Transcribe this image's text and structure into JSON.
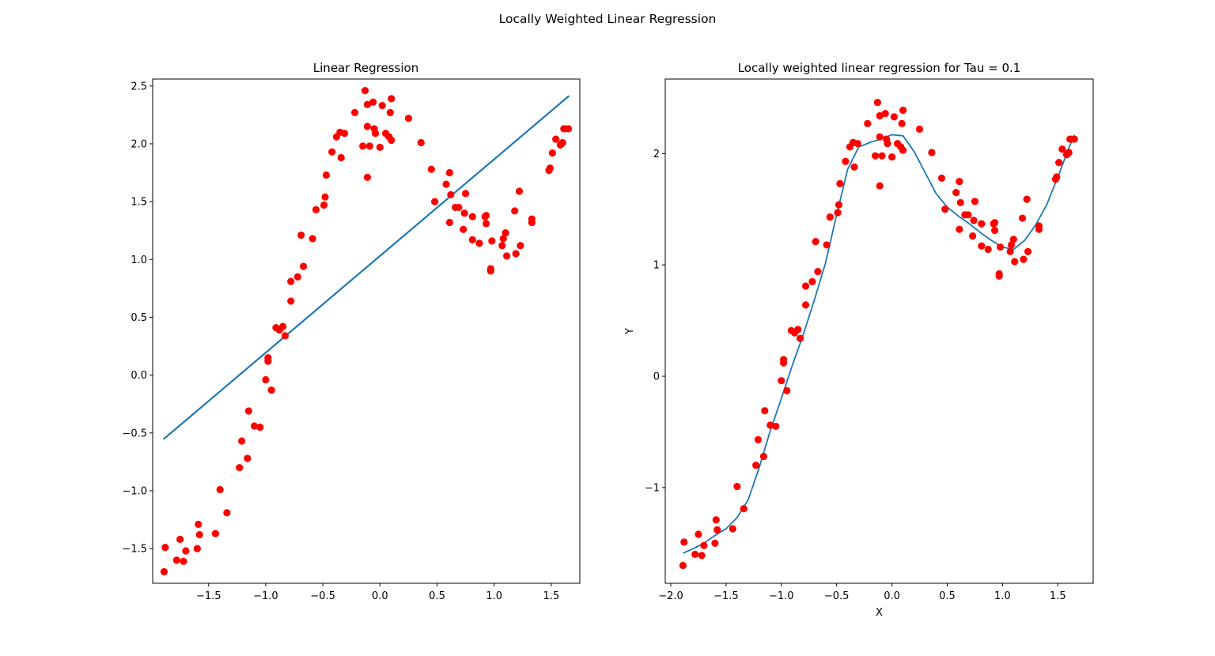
{
  "figure": {
    "suptitle": "Locally Weighted Linear Regression"
  },
  "chart_data": [
    {
      "type": "scatter",
      "title": "Linear Regression",
      "xlabel": "",
      "ylabel": "",
      "xlim": [
        -1.99,
        1.75
      ],
      "ylim": [
        -1.8,
        2.56
      ],
      "xticks": [
        -1.5,
        -1.0,
        -0.5,
        0.0,
        0.5,
        1.0,
        1.5
      ],
      "xtick_labels": [
        "−1.5",
        "−1.0",
        "−0.5",
        "0.0",
        "0.5",
        "1.0",
        "1.5"
      ],
      "yticks": [
        -1.5,
        -1.0,
        -0.5,
        0.0,
        0.5,
        1.0,
        1.5,
        2.0,
        2.5
      ],
      "ytick_labels": [
        "−1.5",
        "−1.0",
        "−0.5",
        "0.0",
        "0.5",
        "1.0",
        "1.5",
        "2.0",
        "2.5"
      ],
      "grid": false,
      "points_color": "#ff0000",
      "line_color": "#1f77b4",
      "points": [
        [
          -1.89,
          -1.7
        ],
        [
          -1.88,
          -1.49
        ],
        [
          -1.78,
          -1.6
        ],
        [
          -1.75,
          -1.42
        ],
        [
          -1.72,
          -1.61
        ],
        [
          -1.7,
          -1.52
        ],
        [
          -1.6,
          -1.5
        ],
        [
          -1.59,
          -1.29
        ],
        [
          -1.58,
          -1.38
        ],
        [
          -1.44,
          -1.37
        ],
        [
          -1.4,
          -0.99
        ],
        [
          -1.34,
          -1.19
        ],
        [
          -1.23,
          -0.8
        ],
        [
          -1.21,
          -0.57
        ],
        [
          -1.16,
          -0.72
        ],
        [
          -1.15,
          -0.31
        ],
        [
          -1.1,
          -0.44
        ],
        [
          -1.05,
          -0.45
        ],
        [
          -1.0,
          -0.04
        ],
        [
          -0.98,
          0.15
        ],
        [
          -0.98,
          0.12
        ],
        [
          -0.95,
          -0.13
        ],
        [
          -0.91,
          0.41
        ],
        [
          -0.88,
          0.39
        ],
        [
          -0.85,
          0.42
        ],
        [
          -0.83,
          0.34
        ],
        [
          -0.78,
          0.81
        ],
        [
          -0.78,
          0.64
        ],
        [
          -0.72,
          0.85
        ],
        [
          -0.69,
          1.21
        ],
        [
          -0.67,
          0.94
        ],
        [
          -0.59,
          1.18
        ],
        [
          -0.56,
          1.43
        ],
        [
          -0.49,
          1.47
        ],
        [
          -0.48,
          1.54
        ],
        [
          -0.47,
          1.73
        ],
        [
          -0.42,
          1.93
        ],
        [
          -0.38,
          2.06
        ],
        [
          -0.35,
          2.1
        ],
        [
          -0.34,
          1.88
        ],
        [
          -0.31,
          2.09
        ],
        [
          -0.22,
          2.27
        ],
        [
          -0.15,
          1.98
        ],
        [
          -0.13,
          2.46
        ],
        [
          -0.11,
          2.34
        ],
        [
          -0.11,
          2.15
        ],
        [
          -0.11,
          1.71
        ],
        [
          -0.09,
          1.98
        ],
        [
          -0.06,
          2.36
        ],
        [
          -0.05,
          2.13
        ],
        [
          -0.04,
          2.09
        ],
        [
          0.0,
          1.97
        ],
        [
          0.02,
          2.33
        ],
        [
          0.05,
          2.09
        ],
        [
          0.08,
          2.06
        ],
        [
          0.09,
          2.27
        ],
        [
          0.1,
          2.03
        ],
        [
          0.1,
          2.39
        ],
        [
          0.25,
          2.22
        ],
        [
          0.36,
          2.01
        ],
        [
          0.45,
          1.78
        ],
        [
          0.48,
          1.5
        ],
        [
          0.58,
          1.65
        ],
        [
          0.61,
          1.75
        ],
        [
          0.61,
          1.32
        ],
        [
          0.62,
          1.56
        ],
        [
          0.66,
          1.45
        ],
        [
          0.69,
          1.45
        ],
        [
          0.73,
          1.26
        ],
        [
          0.74,
          1.4
        ],
        [
          0.75,
          1.57
        ],
        [
          0.81,
          1.17
        ],
        [
          0.81,
          1.37
        ],
        [
          0.87,
          1.14
        ],
        [
          0.92,
          1.37
        ],
        [
          0.93,
          1.38
        ],
        [
          0.93,
          1.31
        ],
        [
          0.97,
          0.92
        ],
        [
          0.97,
          0.9
        ],
        [
          0.98,
          1.16
        ],
        [
          1.07,
          1.12
        ],
        [
          1.08,
          1.18
        ],
        [
          1.1,
          1.23
        ],
        [
          1.11,
          1.03
        ],
        [
          1.18,
          1.42
        ],
        [
          1.19,
          1.05
        ],
        [
          1.22,
          1.59
        ],
        [
          1.23,
          1.12
        ],
        [
          1.33,
          1.35
        ],
        [
          1.33,
          1.32
        ],
        [
          1.48,
          1.77
        ],
        [
          1.49,
          1.79
        ],
        [
          1.51,
          1.92
        ],
        [
          1.54,
          2.04
        ],
        [
          1.58,
          1.99
        ],
        [
          1.59,
          2.0
        ],
        [
          1.6,
          2.01
        ],
        [
          1.61,
          2.13
        ],
        [
          1.62,
          2.13
        ],
        [
          1.65,
          2.13
        ]
      ],
      "fit_line": {
        "x": [
          -1.89,
          1.65
        ],
        "y": [
          -0.55,
          2.41
        ]
      }
    },
    {
      "type": "scatter",
      "title": "Locally weighted linear regression for Tau = 0.1",
      "xlabel": "X",
      "ylabel": "Y",
      "xlim": [
        -2.05,
        1.82
      ],
      "ylim": [
        -1.86,
        2.67
      ],
      "xticks": [
        -2.0,
        -1.5,
        -1.0,
        -0.5,
        0.0,
        0.5,
        1.0,
        1.5
      ],
      "xtick_labels": [
        "−2.0",
        "−1.5",
        "−1.0",
        "−0.5",
        "0.0",
        "0.5",
        "1.0",
        "1.5"
      ],
      "yticks": [
        -1,
        0,
        1,
        2
      ],
      "ytick_labels": [
        "−1",
        "0",
        "1",
        "2"
      ],
      "grid": false,
      "points_color": "#ff0000",
      "line_color": "#1f77b4",
      "points_same_as": "chart_data[0].points",
      "fit_curve": {
        "x": [
          -1.89,
          -1.8,
          -1.7,
          -1.6,
          -1.5,
          -1.4,
          -1.3,
          -1.2,
          -1.1,
          -1.0,
          -0.9,
          -0.8,
          -0.7,
          -0.6,
          -0.5,
          -0.4,
          -0.3,
          -0.2,
          -0.1,
          0.0,
          0.1,
          0.2,
          0.3,
          0.4,
          0.5,
          0.6,
          0.7,
          0.8,
          0.9,
          1.0,
          1.1,
          1.2,
          1.3,
          1.4,
          1.5,
          1.6,
          1.65
        ],
        "y": [
          -1.59,
          -1.55,
          -1.5,
          -1.43,
          -1.37,
          -1.27,
          -1.11,
          -0.82,
          -0.49,
          -0.2,
          0.1,
          0.38,
          0.69,
          1.02,
          1.45,
          1.86,
          2.06,
          2.1,
          2.13,
          2.17,
          2.16,
          2.02,
          1.83,
          1.64,
          1.52,
          1.44,
          1.37,
          1.29,
          1.22,
          1.16,
          1.14,
          1.22,
          1.36,
          1.54,
          1.79,
          2.05,
          2.17
        ]
      }
    }
  ]
}
